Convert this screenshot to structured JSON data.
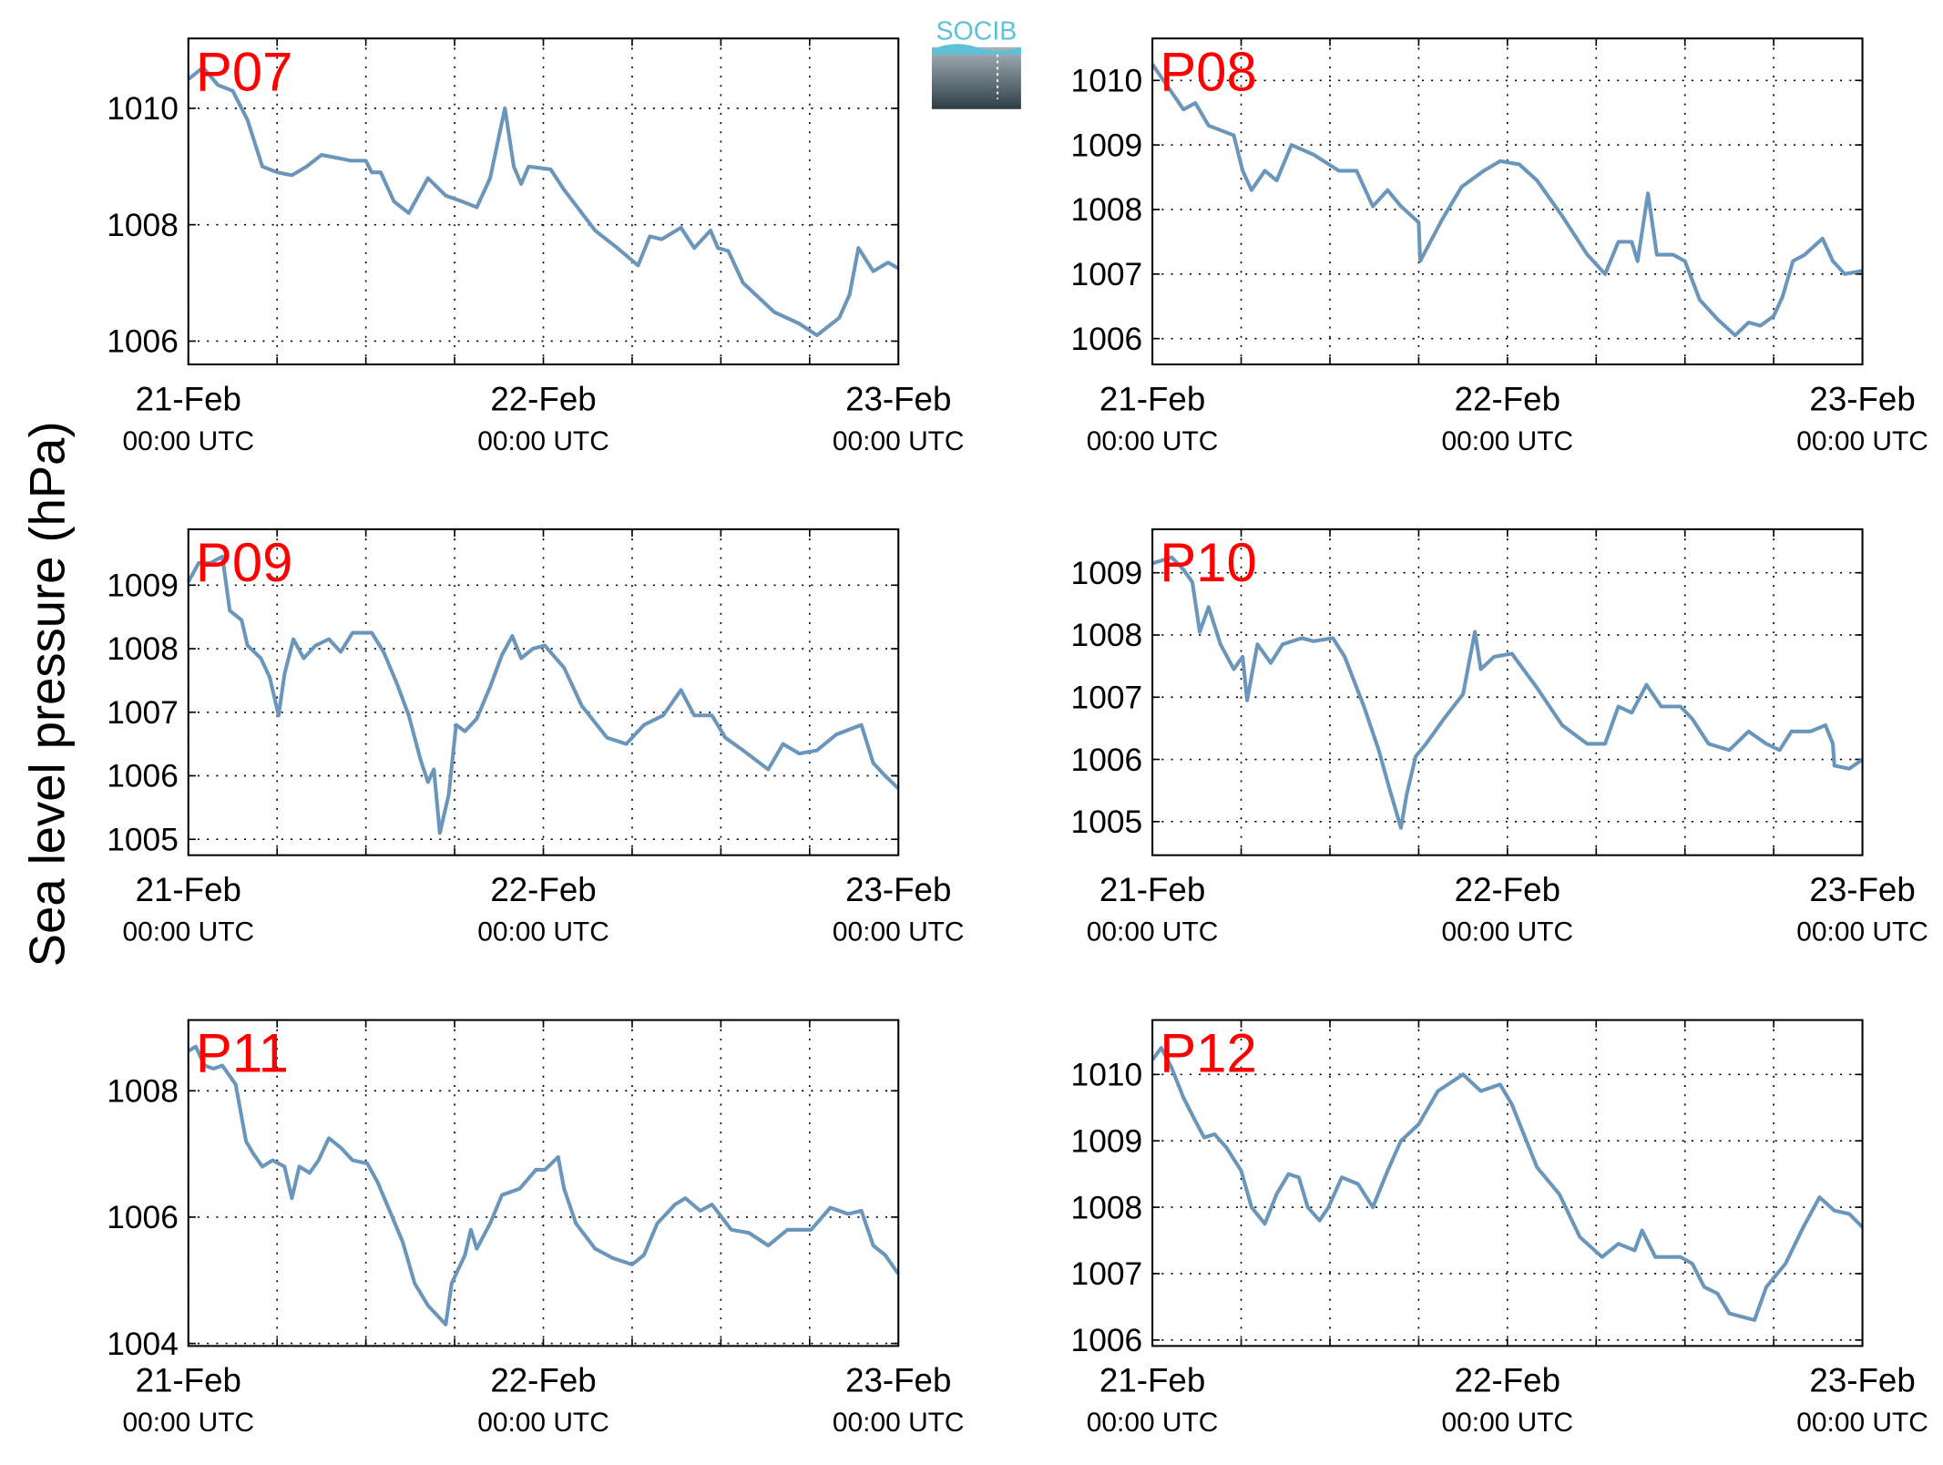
{
  "ylabel": "Sea level pressure (hPa)",
  "logo": "SOCIB",
  "chart_data": [
    {
      "type": "line",
      "title": "P07",
      "color": "#6b96bb",
      "grid": true,
      "xlim": [
        0,
        48
      ],
      "xticks": [
        {
          "value": 0,
          "label": [
            "21-Feb",
            "00:00 UTC"
          ]
        },
        {
          "value": 24,
          "label": [
            "22-Feb",
            "00:00 UTC"
          ]
        },
        {
          "value": 48,
          "label": [
            "23-Feb",
            "00:00 UTC"
          ]
        }
      ],
      "xminorticks": [
        6,
        12,
        18,
        30,
        36,
        42
      ],
      "ylim": [
        1005.6,
        1011.2
      ],
      "yticks": [
        1006,
        1008,
        1010
      ],
      "x": [
        0,
        1,
        2,
        3,
        4,
        5,
        6,
        7,
        8,
        9,
        11,
        12,
        12.4,
        13,
        13.9,
        14.9,
        16.2,
        17.4,
        18.5,
        19.5,
        20.4,
        21.4,
        22,
        22.5,
        23,
        24.5,
        25.4,
        27.5,
        29,
        30.4,
        31.2,
        32,
        33.3,
        34.2,
        35.3,
        35.8,
        36.5,
        37.5,
        39.6,
        41.3,
        42.5,
        44,
        44.7,
        45.3,
        46.3,
        47.3,
        48
      ],
      "values": [
        1010.5,
        1010.7,
        1010.4,
        1010.3,
        1009.8,
        1009.0,
        1008.9,
        1008.85,
        1009.0,
        1009.2,
        1009.1,
        1009.1,
        1008.9,
        1008.9,
        1008.4,
        1008.2,
        1008.8,
        1008.5,
        1008.4,
        1008.3,
        1008.8,
        1010.0,
        1009.0,
        1008.7,
        1009.0,
        1008.95,
        1008.6,
        1007.9,
        1007.6,
        1007.3,
        1007.8,
        1007.75,
        1007.95,
        1007.6,
        1007.9,
        1007.6,
        1007.55,
        1007.0,
        1006.5,
        1006.3,
        1006.1,
        1006.4,
        1006.8,
        1007.6,
        1007.2,
        1007.35,
        1007.25
      ]
    },
    {
      "type": "line",
      "title": "P08",
      "color": "#6b96bb",
      "grid": true,
      "xlim": [
        0,
        48
      ],
      "xticks": [
        {
          "value": 0,
          "label": [
            "21-Feb",
            "00:00 UTC"
          ]
        },
        {
          "value": 24,
          "label": [
            "22-Feb",
            "00:00 UTC"
          ]
        },
        {
          "value": 48,
          "label": [
            "23-Feb",
            "00:00 UTC"
          ]
        }
      ],
      "xminorticks": [
        6,
        12,
        18,
        30,
        36,
        42
      ],
      "ylim": [
        1005.6,
        1010.65
      ],
      "yticks": [
        1006,
        1007,
        1008,
        1009,
        1010
      ],
      "x": [
        0,
        2.1,
        2.9,
        3.8,
        5.5,
        6.1,
        6.7,
        7.6,
        8.4,
        9.4,
        10.9,
        12.6,
        13.8,
        14.9,
        15.9,
        16.8,
        18.0,
        18.1,
        19.6,
        20.9,
        22.4,
        23.5,
        24.8,
        26.0,
        27.7,
        29.4,
        30.6,
        31.5,
        32.4,
        32.8,
        33.5,
        34.1,
        35.2,
        36.0,
        37.0,
        38.2,
        39.4,
        40.3,
        41.1,
        42.0,
        42.6,
        43.3,
        44.1,
        45.3,
        46.0,
        46.8,
        48
      ],
      "values": [
        1010.25,
        1009.55,
        1009.65,
        1009.3,
        1009.15,
        1008.6,
        1008.3,
        1008.6,
        1008.45,
        1009.0,
        1008.85,
        1008.6,
        1008.6,
        1008.05,
        1008.3,
        1008.05,
        1007.8,
        1007.2,
        1007.85,
        1008.35,
        1008.6,
        1008.75,
        1008.7,
        1008.45,
        1007.9,
        1007.3,
        1007.0,
        1007.5,
        1007.5,
        1007.2,
        1008.25,
        1007.3,
        1007.3,
        1007.2,
        1006.6,
        1006.3,
        1006.05,
        1006.25,
        1006.2,
        1006.35,
        1006.65,
        1007.2,
        1007.3,
        1007.55,
        1007.2,
        1007.0,
        1007.05
      ]
    },
    {
      "type": "line",
      "title": "P09",
      "color": "#6b96bb",
      "grid": true,
      "xlim": [
        0,
        48
      ],
      "xticks": [
        {
          "value": 0,
          "label": [
            "21-Feb",
            "00:00 UTC"
          ]
        },
        {
          "value": 24,
          "label": [
            "22-Feb",
            "00:00 UTC"
          ]
        },
        {
          "value": 48,
          "label": [
            "23-Feb",
            "00:00 UTC"
          ]
        }
      ],
      "xminorticks": [
        6,
        12,
        18,
        30,
        36,
        42
      ],
      "ylim": [
        1004.75,
        1009.88
      ],
      "yticks": [
        1005,
        1006,
        1007,
        1008,
        1009
      ],
      "x": [
        0,
        0.7,
        1.5,
        2.3,
        2.8,
        3.6,
        4,
        4.9,
        5.5,
        6.1,
        6.5,
        7.1,
        7.8,
        8.6,
        9.5,
        10.3,
        11.1,
        12.4,
        13.2,
        14.1,
        14.9,
        15.7,
        16.2,
        16.6,
        17,
        17.6,
        18.1,
        18.7,
        19.5,
        20.4,
        21.2,
        21.9,
        22.5,
        23.3,
        24.1,
        25.4,
        26.6,
        28.3,
        29.6,
        30.8,
        32.1,
        33.3,
        34.2,
        35.4,
        36.3,
        37.5,
        39.2,
        40.2,
        41.3,
        42.5,
        43.8,
        45.5,
        46.3,
        47.1,
        48
      ],
      "values": [
        1009.05,
        1009.35,
        1009.35,
        1009.45,
        1008.6,
        1008.45,
        1008.05,
        1007.85,
        1007.55,
        1006.95,
        1007.6,
        1008.15,
        1007.85,
        1008.05,
        1008.15,
        1007.95,
        1008.25,
        1008.25,
        1007.95,
        1007.45,
        1006.95,
        1006.25,
        1005.9,
        1006.1,
        1005.1,
        1005.7,
        1006.8,
        1006.7,
        1006.9,
        1007.4,
        1007.9,
        1008.2,
        1007.85,
        1008.0,
        1008.05,
        1007.7,
        1007.1,
        1006.6,
        1006.5,
        1006.8,
        1006.95,
        1007.35,
        1006.95,
        1006.95,
        1006.6,
        1006.4,
        1006.1,
        1006.5,
        1006.35,
        1006.4,
        1006.65,
        1006.8,
        1006.2,
        1006.0,
        1005.8
      ]
    },
    {
      "type": "line",
      "title": "P10",
      "color": "#6b96bb",
      "grid": true,
      "xlim": [
        0,
        48
      ],
      "xticks": [
        {
          "value": 0,
          "label": [
            "21-Feb",
            "00:00 UTC"
          ]
        },
        {
          "value": 24,
          "label": [
            "22-Feb",
            "00:00 UTC"
          ]
        },
        {
          "value": 48,
          "label": [
            "23-Feb",
            "00:00 UTC"
          ]
        }
      ],
      "xminorticks": [
        6,
        12,
        18,
        30,
        36,
        42
      ],
      "ylim": [
        1004.46,
        1009.7
      ],
      "yticks": [
        1005,
        1006,
        1007,
        1008,
        1009
      ],
      "x": [
        0,
        1.3,
        2.1,
        2.7,
        3.2,
        3.8,
        4.6,
        5.5,
        6.1,
        6.4,
        7.1,
        8,
        8.8,
        10.1,
        10.9,
        12.2,
        13,
        14.3,
        15.3,
        16,
        16.8,
        17.2,
        17.8,
        18.5,
        19.7,
        21,
        21.8,
        22.2,
        23.1,
        24.3,
        26,
        27.7,
        29.4,
        30.6,
        31.5,
        32.4,
        33.4,
        34.4,
        35.7,
        36.5,
        37.6,
        39,
        40.3,
        41.5,
        42.4,
        43.2,
        44.5,
        45.5,
        46,
        46.1,
        47.1,
        48
      ],
      "values": [
        1009.15,
        1009.25,
        1009.05,
        1008.85,
        1008.05,
        1008.45,
        1007.85,
        1007.45,
        1007.65,
        1006.95,
        1007.85,
        1007.55,
        1007.85,
        1007.95,
        1007.9,
        1007.95,
        1007.65,
        1006.85,
        1006.15,
        1005.55,
        1004.9,
        1005.45,
        1006.05,
        1006.25,
        1006.65,
        1007.05,
        1008.05,
        1007.45,
        1007.65,
        1007.7,
        1007.15,
        1006.55,
        1006.25,
        1006.25,
        1006.85,
        1006.75,
        1007.2,
        1006.85,
        1006.85,
        1006.65,
        1006.25,
        1006.15,
        1006.45,
        1006.25,
        1006.15,
        1006.45,
        1006.45,
        1006.55,
        1006.25,
        1005.9,
        1005.85,
        1006.0
      ]
    },
    {
      "type": "line",
      "title": "P11",
      "color": "#6b96bb",
      "grid": true,
      "xlim": [
        0,
        48
      ],
      "xticks": [
        {
          "value": 0,
          "label": [
            "21-Feb",
            "00:00 UTC"
          ]
        },
        {
          "value": 24,
          "label": [
            "22-Feb",
            "00:00 UTC"
          ]
        },
        {
          "value": 48,
          "label": [
            "23-Feb",
            "00:00 UTC"
          ]
        }
      ],
      "xminorticks": [
        6,
        12,
        18,
        30,
        36,
        42
      ],
      "ylim": [
        1003.96,
        1009.12
      ],
      "yticks": [
        1004,
        1006,
        1008
      ],
      "x": [
        0,
        0.5,
        1.1,
        1.7,
        2.3,
        3.2,
        3.9,
        4.4,
        5,
        5.7,
        6.5,
        7,
        7.5,
        8.2,
        8.8,
        9.5,
        10.3,
        11.1,
        12.1,
        12.8,
        13.7,
        14.5,
        15.3,
        16.2,
        17,
        17.4,
        17.8,
        18.7,
        19.1,
        19.5,
        20.4,
        21.2,
        22.4,
        23.5,
        24.1,
        25,
        25.4,
        26.2,
        27.5,
        28.7,
        30,
        30.8,
        31.7,
        32.9,
        33.6,
        34.6,
        35.4,
        36.7,
        37.9,
        39.2,
        40.5,
        42.1,
        43.4,
        44.6,
        45.5,
        46.3,
        47.1,
        48
      ],
      "values": [
        1008.63,
        1008.7,
        1008.4,
        1008.35,
        1008.4,
        1008.1,
        1007.2,
        1007.0,
        1006.8,
        1006.9,
        1006.8,
        1006.3,
        1006.8,
        1006.7,
        1006.9,
        1007.25,
        1007.1,
        1006.9,
        1006.85,
        1006.55,
        1006.05,
        1005.6,
        1004.95,
        1004.6,
        1004.4,
        1004.3,
        1004.95,
        1005.4,
        1005.8,
        1005.5,
        1005.9,
        1006.35,
        1006.45,
        1006.75,
        1006.75,
        1006.95,
        1006.45,
        1005.9,
        1005.5,
        1005.35,
        1005.25,
        1005.4,
        1005.9,
        1006.2,
        1006.3,
        1006.1,
        1006.2,
        1005.8,
        1005.75,
        1005.55,
        1005.8,
        1005.8,
        1006.15,
        1006.05,
        1006.1,
        1005.55,
        1005.4,
        1005.1
      ]
    },
    {
      "type": "line",
      "title": "P12",
      "color": "#6b96bb",
      "grid": true,
      "xlim": [
        0,
        48
      ],
      "xticks": [
        {
          "value": 0,
          "label": [
            "21-Feb",
            "00:00 UTC"
          ]
        },
        {
          "value": 24,
          "label": [
            "22-Feb",
            "00:00 UTC"
          ]
        },
        {
          "value": 48,
          "label": [
            "23-Feb",
            "00:00 UTC"
          ]
        }
      ],
      "xminorticks": [
        6,
        12,
        18,
        30,
        36,
        42
      ],
      "ylim": [
        1005.91,
        1010.82
      ],
      "yticks": [
        1006,
        1007,
        1008,
        1009,
        1010
      ],
      "x": [
        0,
        0.6,
        1.3,
        2.1,
        2.9,
        3.5,
        4.2,
        5,
        6,
        6.7,
        7.6,
        8.4,
        9.2,
        9.9,
        10.5,
        11.3,
        11.9,
        12.8,
        13.9,
        14.9,
        15.9,
        16.8,
        18,
        19.3,
        21,
        22.2,
        23.5,
        24.3,
        26,
        27.5,
        28.9,
        30.4,
        31.5,
        32.6,
        33.1,
        34,
        35.7,
        36.5,
        37.3,
        38.2,
        39,
        40.7,
        41.5,
        42.8,
        44,
        45.1,
        46.1,
        47.1,
        48
      ],
      "values": [
        1010.22,
        1010.4,
        1010.1,
        1009.65,
        1009.3,
        1009.05,
        1009.1,
        1008.9,
        1008.55,
        1008.0,
        1007.75,
        1008.2,
        1008.5,
        1008.45,
        1008.0,
        1007.8,
        1008.0,
        1008.45,
        1008.35,
        1008.0,
        1008.55,
        1009.0,
        1009.25,
        1009.75,
        1010.0,
        1009.75,
        1009.85,
        1009.55,
        1008.6,
        1008.2,
        1007.55,
        1007.25,
        1007.45,
        1007.35,
        1007.65,
        1007.25,
        1007.25,
        1007.15,
        1006.8,
        1006.7,
        1006.4,
        1006.3,
        1006.8,
        1007.15,
        1007.7,
        1008.15,
        1007.95,
        1007.9,
        1007.7
      ]
    }
  ]
}
